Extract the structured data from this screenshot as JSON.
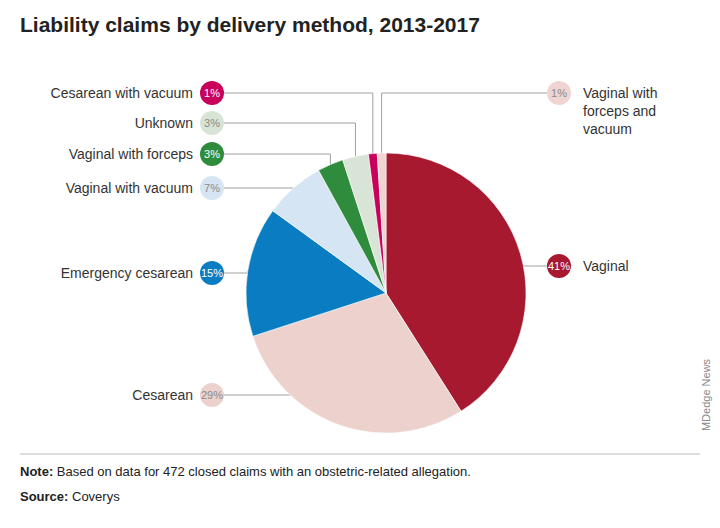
{
  "chart_data": {
    "type": "pie",
    "title": "Liability claims by delivery method, 2013-2017",
    "categories": [
      "Vaginal",
      "Cesarean",
      "Emergency cesarean",
      "Vaginal with vacuum",
      "Vaginal with forceps",
      "Unknown",
      "Cesarean with vacuum",
      "Vaginal with forceps and vacuum"
    ],
    "values": [
      41,
      29,
      15,
      7,
      3,
      3,
      1,
      1
    ],
    "value_labels": [
      "41%",
      "29%",
      "15%",
      "7%",
      "3%",
      "3%",
      "1%",
      "1%"
    ],
    "colors": [
      "#a6192e",
      "#ecd1cd",
      "#0a7dc2",
      "#d5e5f4",
      "#2f8c3c",
      "#d8e4d6",
      "#c8005a",
      "#f0d4d2"
    ],
    "data_labels": true,
    "note": {
      "label": "Note:",
      "text": "Based on data for 472 closed claims with an obstetric-related allegation."
    },
    "source": {
      "label": "Source:",
      "text": "Coverys"
    },
    "credit": "MDedge News"
  }
}
